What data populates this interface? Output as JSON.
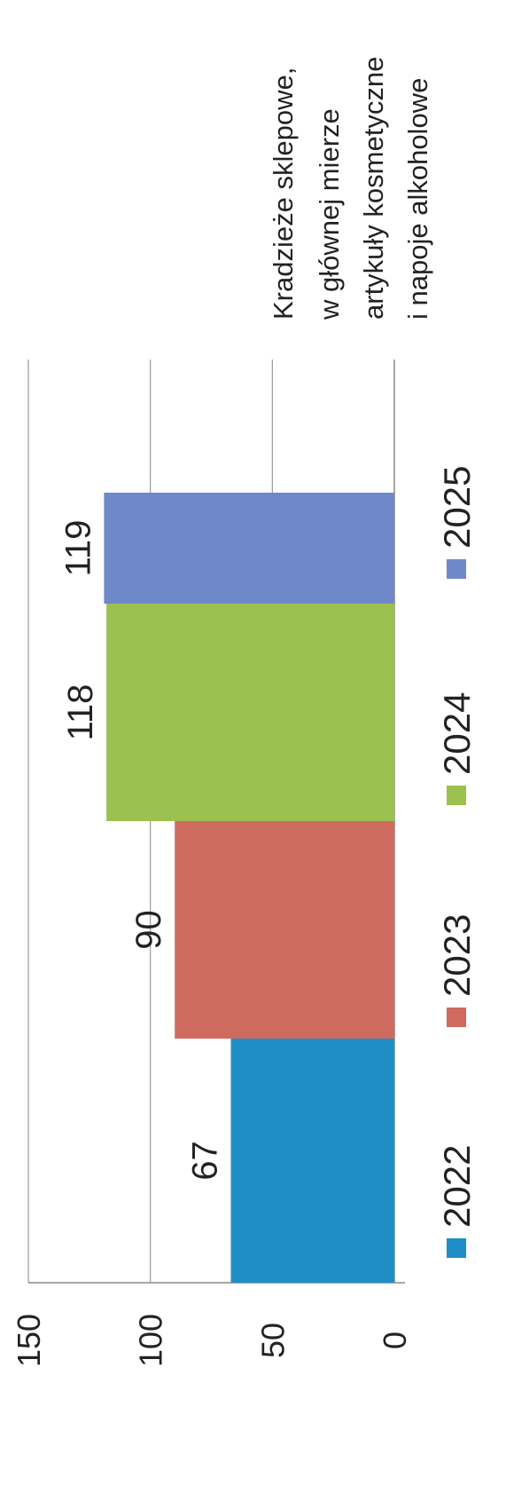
{
  "chart_data": {
    "type": "bar",
    "orientation": "rotated-90-ccw",
    "title": [
      "Kradzieże sklepowe,",
      "w głównej mierze",
      "artykuły kosmetyczne",
      "i napoje alkoholowe"
    ],
    "categories": [
      "2022",
      "2023",
      "2024",
      "2025"
    ],
    "values": [
      67,
      90,
      118,
      119
    ],
    "data_labels": [
      "67",
      "90",
      "118",
      "119"
    ],
    "ylim": [
      0,
      150
    ],
    "yticks": [
      "0",
      "50",
      "100",
      "150"
    ],
    "grid": true,
    "legend_position": "bottom",
    "colors": [
      "#1f8ec6",
      "#cf6a5f",
      "#9cc14f",
      "#6f88c9"
    ]
  }
}
